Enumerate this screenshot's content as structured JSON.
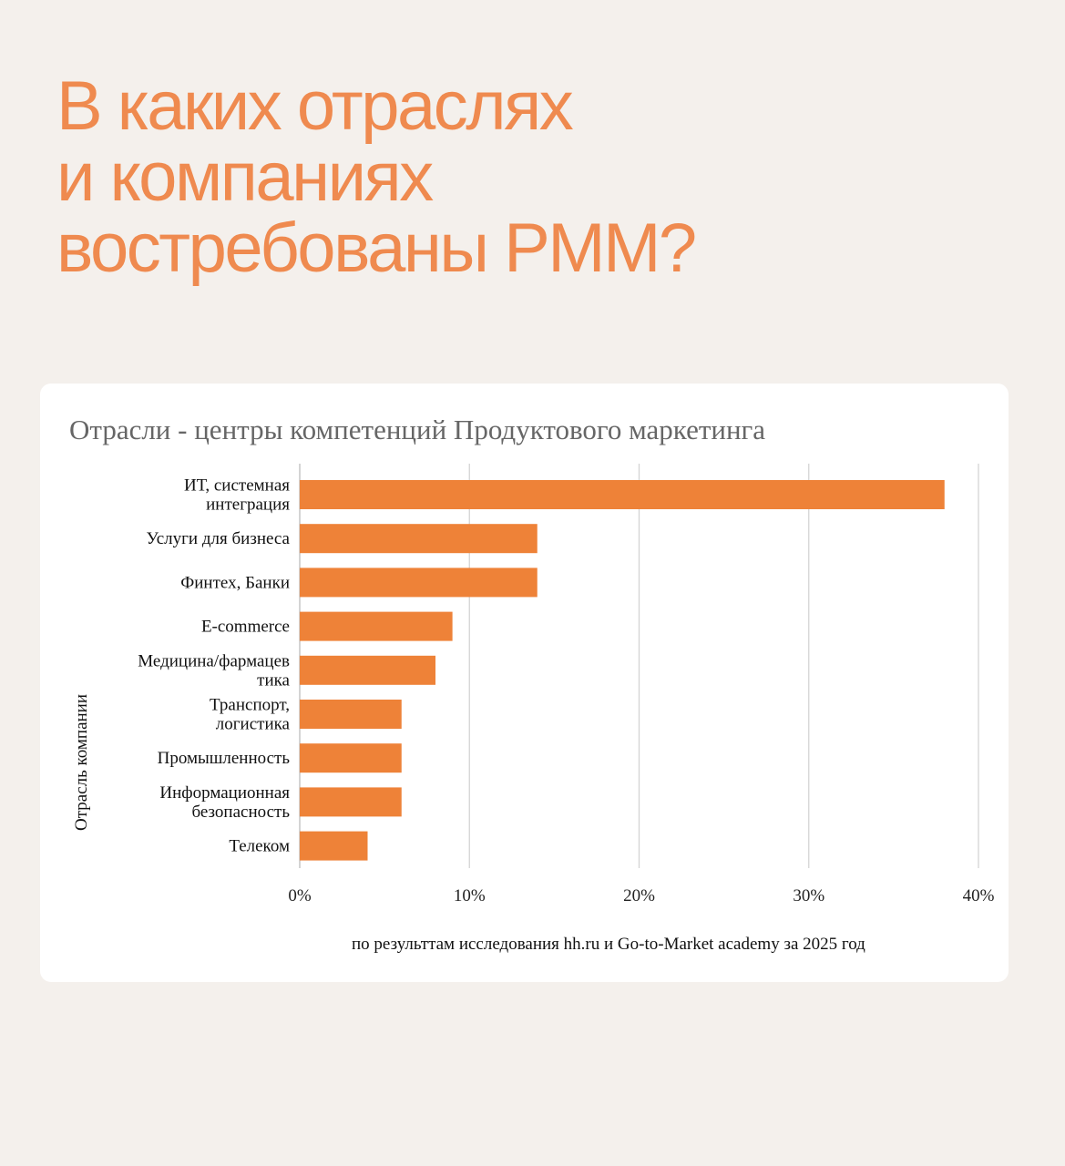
{
  "headline": {
    "lines": [
      "В каких отраслях",
      "и компаниях",
      "востребованы PMM?"
    ]
  },
  "colors": {
    "background": "#f4f0ec",
    "headline": "#ef8a4f",
    "bar": "#ee8238",
    "grid": "#d4d4d4",
    "card": "#ffffff"
  },
  "chart_data": {
    "type": "bar",
    "orientation": "horizontal",
    "title": "Отрасли - центры компетенций Продуктового маркетинга",
    "ylabel": "Отрасль компании",
    "xlabel": "",
    "categories": [
      [
        "ИТ, системная",
        "интеграция"
      ],
      [
        "Услуги для бизнеса"
      ],
      [
        "Финтех, Банки"
      ],
      [
        "E-commerce"
      ],
      [
        "Медицина/фармацев",
        "тика"
      ],
      [
        "Транспорт,",
        "логистика"
      ],
      [
        "Промышленность"
      ],
      [
        "Информационная",
        "безопасность"
      ],
      [
        "Телеком"
      ]
    ],
    "values": [
      38,
      14,
      14,
      9,
      8,
      6,
      6,
      6,
      4
    ],
    "value_unit": "%",
    "xlim": [
      0,
      40
    ],
    "x_ticks": [
      0,
      10,
      20,
      30,
      40
    ],
    "x_tick_labels": [
      "0%",
      "10%",
      "20%",
      "30%",
      "40%"
    ],
    "grid": "vertical",
    "legend": "none",
    "note": "по результтам исследования hh.ru и Go-to-Market academy за 2025 год"
  }
}
